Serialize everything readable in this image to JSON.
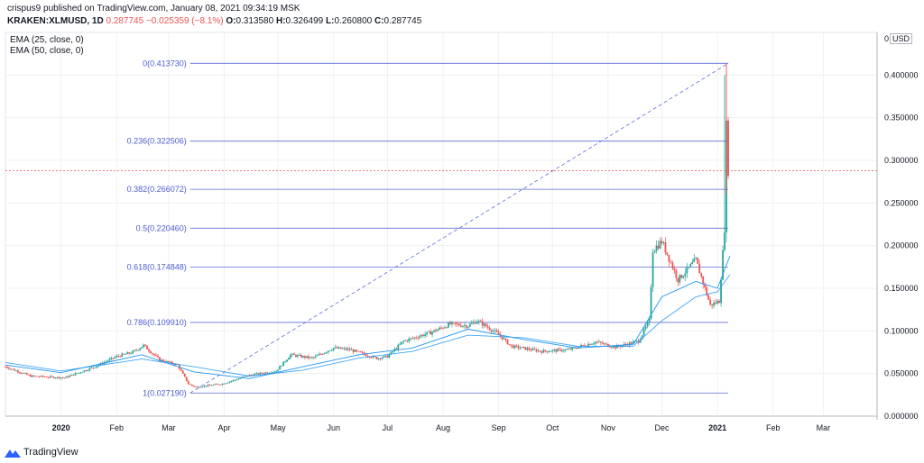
{
  "header": {
    "line1": "crispus9 published on TradingView.com, January 08, 2021 09:34:19 MSK",
    "symbol": "KRAKEN:XLMUSD, 1D",
    "last": "0.287745",
    "change": "−0.025359 (−8.1%)",
    "o_label": "O:",
    "o_value": "0.313580",
    "h_label": "H:",
    "h_value": "0.326499",
    "l_label": "L:",
    "l_value": "0.260800",
    "c_label": "C:",
    "c_value": "0.287745"
  },
  "legend": {
    "ema1": "EMA (25, close, 0)",
    "ema2": "EMA (50, close, 0)"
  },
  "currency": "USD",
  "footer": {
    "brand": "TradingView"
  },
  "colors": {
    "up": "#26a69a",
    "down": "#ef5350",
    "fib": "#5b6bd6",
    "fib_label": "#4a5bd0",
    "ema": "#2196f3",
    "grid": "#eef0f3",
    "axis_text": "#131722",
    "price_line": "#ef5350"
  },
  "chart_data": {
    "type": "candlestick",
    "title": "",
    "y_axis": {
      "min": 0.0,
      "max": 0.45,
      "ticks": [
        0.0,
        0.05,
        0.1,
        0.15,
        0.2,
        0.25,
        0.3,
        0.35,
        0.4
      ],
      "tick_labels": [
        "0.000000",
        "0.050000",
        "0.100000",
        "0.150000",
        "0.200000",
        "0.250000",
        "0.300000",
        "0.350000",
        "0.400000"
      ],
      "top_label": "0"
    },
    "x_axis": {
      "start": "2019-12-01",
      "end": "2021-03-31",
      "labels": [
        {
          "text": "2020",
          "date": "2020-01-01",
          "bold": true
        },
        {
          "text": "Feb",
          "date": "2020-02-01"
        },
        {
          "text": "Mar",
          "date": "2020-03-01"
        },
        {
          "text": "Apr",
          "date": "2020-04-01"
        },
        {
          "text": "May",
          "date": "2020-05-01"
        },
        {
          "text": "Jun",
          "date": "2020-06-01"
        },
        {
          "text": "Jul",
          "date": "2020-07-01"
        },
        {
          "text": "Aug",
          "date": "2020-08-01"
        },
        {
          "text": "Sep",
          "date": "2020-09-01"
        },
        {
          "text": "Oct",
          "date": "2020-10-01"
        },
        {
          "text": "Nov",
          "date": "2020-11-01"
        },
        {
          "text": "Dec",
          "date": "2020-12-01"
        },
        {
          "text": "2021",
          "date": "2021-01-01",
          "bold": true
        },
        {
          "text": "Feb",
          "date": "2021-02-01"
        },
        {
          "text": "Mar",
          "date": "2021-03-01"
        }
      ]
    },
    "fibonacci": {
      "start_date": "2020-03-13",
      "end_date": "2021-01-07",
      "levels": [
        {
          "label": "0(0.413730)",
          "value": 0.41373
        },
        {
          "label": "0.236(0.322506)",
          "value": 0.322506
        },
        {
          "label": "0.382(0.266072)",
          "value": 0.266072
        },
        {
          "label": "0.5(0.220460)",
          "value": 0.22046
        },
        {
          "label": "0.618(0.174848)",
          "value": 0.174848
        },
        {
          "label": "0.786(0.109910)",
          "value": 0.10991
        },
        {
          "label": "1(0.027190)",
          "value": 0.02719
        }
      ]
    },
    "current_price": 0.287745,
    "price_path": [
      [
        "2019-12-01",
        0.058
      ],
      [
        "2019-12-15",
        0.047
      ],
      [
        "2020-01-03",
        0.045
      ],
      [
        "2020-01-20",
        0.058
      ],
      [
        "2020-02-01",
        0.07
      ],
      [
        "2020-02-10",
        0.075
      ],
      [
        "2020-02-16",
        0.083
      ],
      [
        "2020-02-25",
        0.066
      ],
      [
        "2020-03-06",
        0.06
      ],
      [
        "2020-03-12",
        0.038
      ],
      [
        "2020-03-16",
        0.034
      ],
      [
        "2020-03-31",
        0.038
      ],
      [
        "2020-04-15",
        0.048
      ],
      [
        "2020-04-30",
        0.053
      ],
      [
        "2020-05-08",
        0.072
      ],
      [
        "2020-05-20",
        0.068
      ],
      [
        "2020-06-01",
        0.08
      ],
      [
        "2020-06-10",
        0.078
      ],
      [
        "2020-06-25",
        0.068
      ],
      [
        "2020-07-01",
        0.07
      ],
      [
        "2020-07-10",
        0.088
      ],
      [
        "2020-07-25",
        0.098
      ],
      [
        "2020-08-05",
        0.108
      ],
      [
        "2020-08-15",
        0.106
      ],
      [
        "2020-08-20",
        0.112
      ],
      [
        "2020-09-01",
        0.096
      ],
      [
        "2020-09-08",
        0.082
      ],
      [
        "2020-09-25",
        0.076
      ],
      [
        "2020-10-10",
        0.078
      ],
      [
        "2020-10-25",
        0.087
      ],
      [
        "2020-11-05",
        0.081
      ],
      [
        "2020-11-18",
        0.088
      ],
      [
        "2020-11-24",
        0.112
      ],
      [
        "2020-11-26",
        0.195
      ],
      [
        "2020-12-01",
        0.205
      ],
      [
        "2020-12-10",
        0.16
      ],
      [
        "2020-12-20",
        0.183
      ],
      [
        "2020-12-28",
        0.13
      ],
      [
        "2021-01-02",
        0.135
      ],
      [
        "2021-01-05",
        0.22
      ],
      [
        "2021-01-06",
        0.34
      ],
      [
        "2021-01-07",
        0.288
      ]
    ],
    "series": [
      {
        "name": "EMA (25, close, 0)",
        "points": [
          [
            "2019-12-01",
            0.06
          ],
          [
            "2020-01-01",
            0.051
          ],
          [
            "2020-02-15",
            0.072
          ],
          [
            "2020-03-15",
            0.052
          ],
          [
            "2020-04-15",
            0.044
          ],
          [
            "2020-05-15",
            0.058
          ],
          [
            "2020-06-15",
            0.072
          ],
          [
            "2020-07-15",
            0.08
          ],
          [
            "2020-08-15",
            0.102
          ],
          [
            "2020-09-15",
            0.09
          ],
          [
            "2020-10-15",
            0.08
          ],
          [
            "2020-11-15",
            0.084
          ],
          [
            "2020-12-01",
            0.14
          ],
          [
            "2020-12-20",
            0.158
          ],
          [
            "2021-01-01",
            0.15
          ],
          [
            "2021-01-08",
            0.188
          ]
        ]
      },
      {
        "name": "EMA (50, close, 0)",
        "points": [
          [
            "2019-12-01",
            0.063
          ],
          [
            "2020-01-01",
            0.053
          ],
          [
            "2020-02-15",
            0.067
          ],
          [
            "2020-03-15",
            0.058
          ],
          [
            "2020-04-15",
            0.047
          ],
          [
            "2020-05-15",
            0.054
          ],
          [
            "2020-06-15",
            0.068
          ],
          [
            "2020-07-15",
            0.076
          ],
          [
            "2020-08-15",
            0.095
          ],
          [
            "2020-09-15",
            0.092
          ],
          [
            "2020-10-15",
            0.082
          ],
          [
            "2020-11-15",
            0.082
          ],
          [
            "2020-12-01",
            0.112
          ],
          [
            "2020-12-20",
            0.14
          ],
          [
            "2021-01-01",
            0.146
          ],
          [
            "2021-01-08",
            0.166
          ]
        ]
      }
    ]
  }
}
